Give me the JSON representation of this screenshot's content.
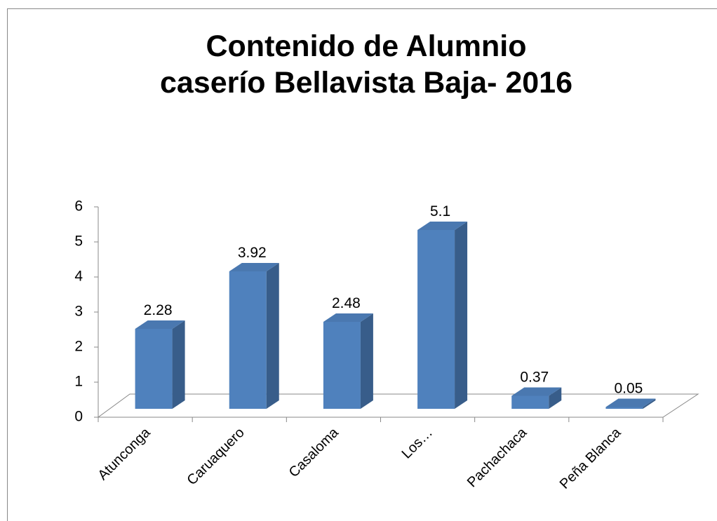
{
  "chart_data": {
    "type": "bar",
    "title": [
      "Contenido de Alumnio",
      "caserío Bellavista Baja- 2016"
    ],
    "categories": [
      "Atunconga",
      "Caruaquero",
      "Casaloma",
      "Los…",
      "Pachachaca",
      "Peña Blanca"
    ],
    "values": [
      2.28,
      3.92,
      2.48,
      5.1,
      0.37,
      0.05
    ],
    "color": "#4f81bd",
    "ylim": [
      0,
      6
    ],
    "yticks": [
      0,
      1,
      2,
      3,
      4,
      5,
      6
    ],
    "grid": false
  }
}
